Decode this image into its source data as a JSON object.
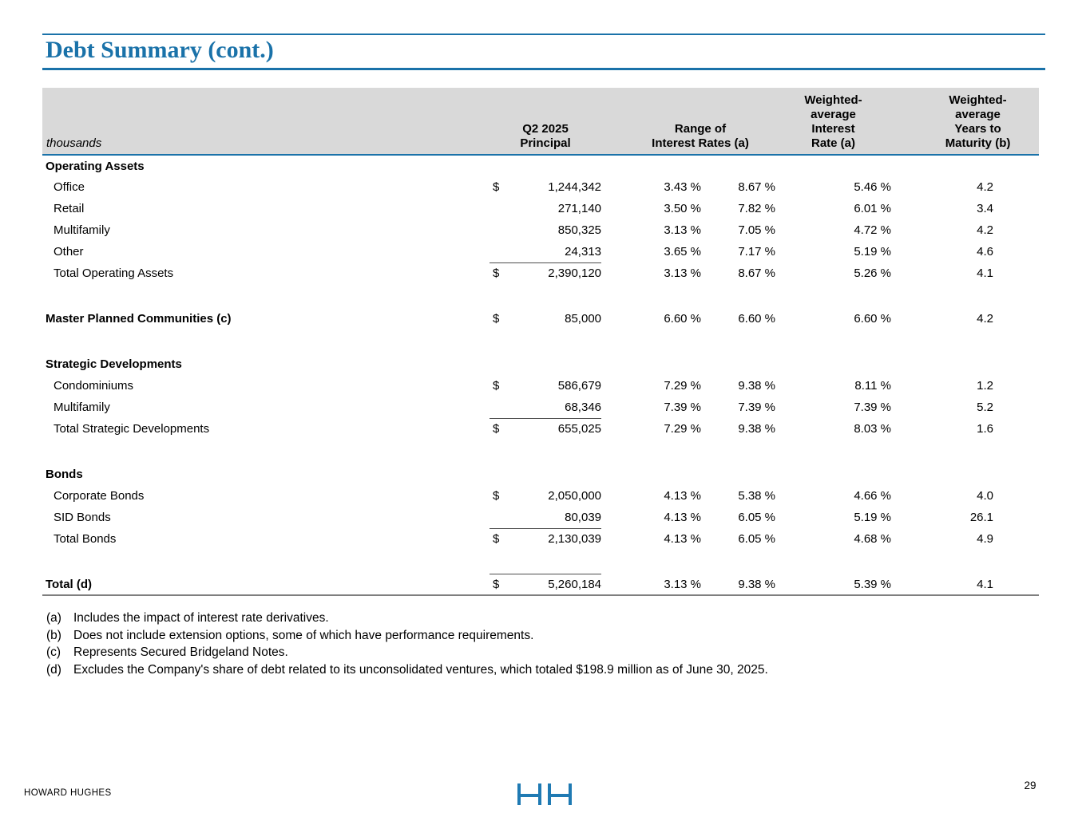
{
  "title": "Debt Summary (cont.)",
  "colors": {
    "accent_blue": "#1a72a9",
    "logo_blue": "#1f7ab3",
    "header_gray": "#d9d9d9",
    "total_rule_gray": "#4d4d4d",
    "table_bottom_gray": "#7f7f7f"
  },
  "table": {
    "unit_label": "thousands",
    "headers": {
      "principal": "Q2 2025\nPrincipal",
      "range": "Range of\nInterest Rates (a)",
      "wa_rate": "Weighted-\naverage\nInterest\nRate (a)",
      "wa_years": "Weighted-\naverage\nYears to\nMaturity (b)"
    },
    "rows": [
      {
        "type": "section",
        "label": "Operating Assets"
      },
      {
        "type": "item",
        "label": "Office",
        "dollar": "$",
        "principal": "1,244,342",
        "rmin": "3.43 %",
        "rmax": "8.67 %",
        "wa": "5.46 %",
        "years": "4.2"
      },
      {
        "type": "item",
        "label": "Retail",
        "principal": "271,140",
        "rmin": "3.50 %",
        "rmax": "7.82 %",
        "wa": "6.01 %",
        "years": "3.4"
      },
      {
        "type": "item",
        "label": "Multifamily",
        "principal": "850,325",
        "rmin": "3.13 %",
        "rmax": "7.05 %",
        "wa": "4.72 %",
        "years": "4.2"
      },
      {
        "type": "item",
        "label": "Other",
        "principal": "24,313",
        "rmin": "3.65 %",
        "rmax": "7.17 %",
        "wa": "5.19 %",
        "years": "4.6"
      },
      {
        "type": "total",
        "label": "Total Operating Assets",
        "dollar": "$",
        "principal": "2,390,120",
        "rmin": "3.13 %",
        "rmax": "8.67 %",
        "wa": "5.26 %",
        "years": "4.1"
      },
      {
        "type": "spacer"
      },
      {
        "type": "section-row",
        "label": "Master Planned Communities (c)",
        "dollar": "$",
        "principal": "85,000",
        "rmin": "6.60 %",
        "rmax": "6.60 %",
        "wa": "6.60 %",
        "years": "4.2"
      },
      {
        "type": "spacer"
      },
      {
        "type": "section",
        "label": "Strategic Developments"
      },
      {
        "type": "item",
        "label": "Condominiums",
        "dollar": "$",
        "principal": "586,679",
        "rmin": "7.29 %",
        "rmax": "9.38 %",
        "wa": "8.11 %",
        "years": "1.2"
      },
      {
        "type": "item",
        "label": "Multifamily",
        "principal": "68,346",
        "rmin": "7.39 %",
        "rmax": "7.39 %",
        "wa": "7.39 %",
        "years": "5.2"
      },
      {
        "type": "total",
        "label": "Total Strategic Developments",
        "dollar": "$",
        "principal": "655,025",
        "rmin": "7.29 %",
        "rmax": "9.38 %",
        "wa": "8.03 %",
        "years": "1.6"
      },
      {
        "type": "spacer"
      },
      {
        "type": "section",
        "label": "Bonds"
      },
      {
        "type": "item",
        "label": "Corporate Bonds",
        "dollar": "$",
        "principal": "2,050,000",
        "rmin": "4.13 %",
        "rmax": "5.38 %",
        "wa": "4.66 %",
        "years": "4.0"
      },
      {
        "type": "item",
        "label": "SID Bonds",
        "principal": "80,039",
        "rmin": "4.13 %",
        "rmax": "6.05 %",
        "wa": "5.19 %",
        "years": "26.1"
      },
      {
        "type": "total",
        "label": "Total Bonds",
        "dollar": "$",
        "principal": "2,130,039",
        "rmin": "4.13 %",
        "rmax": "6.05 %",
        "wa": "4.68 %",
        "years": "4.9"
      },
      {
        "type": "spacer"
      },
      {
        "type": "grand",
        "label": "Total (d)",
        "dollar": "$",
        "principal": "5,260,184",
        "rmin": "3.13 %",
        "rmax": "9.38 %",
        "wa": "5.39 %",
        "years": "4.1"
      }
    ]
  },
  "footnotes": [
    {
      "marker": "(a)",
      "text": "Includes the impact of interest rate derivatives."
    },
    {
      "marker": "(b)",
      "text": "Does not include extension options, some of which have performance requirements."
    },
    {
      "marker": "(c)",
      "text": "Represents Secured Bridgeland Notes."
    },
    {
      "marker": "(d)",
      "text": "Excludes the Company's share of debt related to its unconsolidated ventures, which totaled $198.9 million as of June 30, 2025."
    }
  ],
  "footer": {
    "company": "HOWARD HUGHES",
    "logo": "hh-logo",
    "page_number": "29"
  }
}
